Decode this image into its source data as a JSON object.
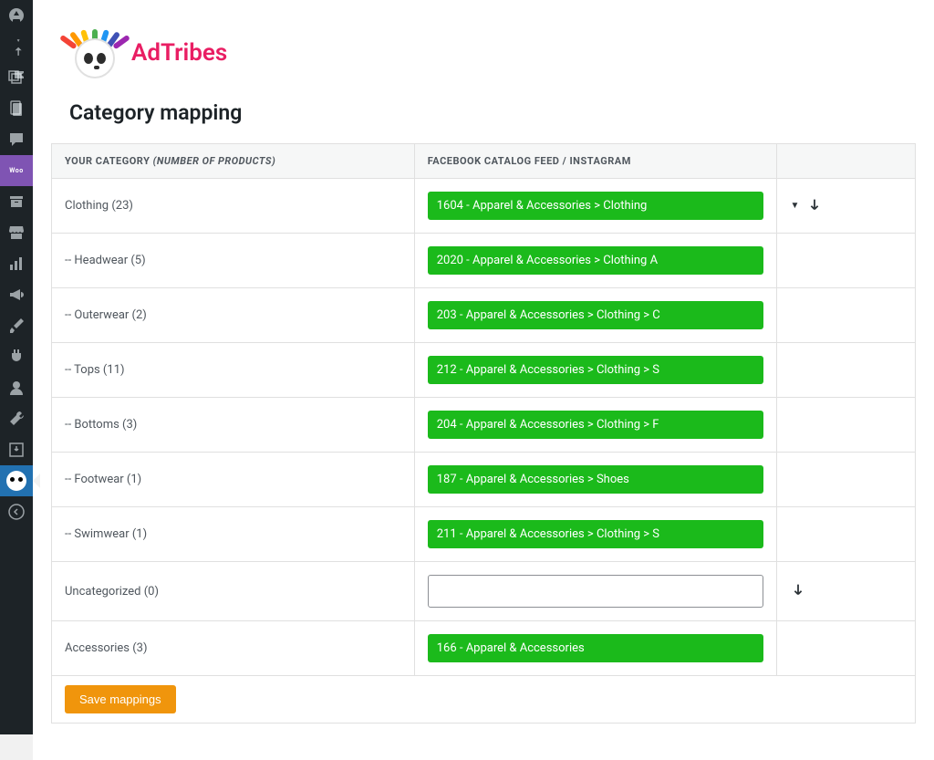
{
  "brand": {
    "name": "AdTribes"
  },
  "page": {
    "title": "Category mapping"
  },
  "table": {
    "col1_label": "YOUR CATEGORY ",
    "col1_suffix": "(NUMBER OF PRODUCTS)",
    "col2_label": "FACEBOOK CATALOG FEED / INSTAGRAM",
    "rows": [
      {
        "label": "Clothing (23)",
        "indent": 0,
        "mapping": "1604 - Apparel & Accessories > Clothing",
        "has_map": true,
        "show_caret": true,
        "show_arrow": true
      },
      {
        "label": "Headwear (5)",
        "indent": 1,
        "mapping": "2020 - Apparel & Accessories > Clothing A",
        "has_map": true,
        "show_caret": false,
        "show_arrow": false
      },
      {
        "label": "Outerwear (2)",
        "indent": 1,
        "mapping": "203 - Apparel & Accessories > Clothing > C",
        "has_map": true,
        "show_caret": false,
        "show_arrow": false
      },
      {
        "label": "Tops (11)",
        "indent": 1,
        "mapping": "212 - Apparel & Accessories > Clothing > S",
        "has_map": true,
        "show_caret": false,
        "show_arrow": false
      },
      {
        "label": "Bottoms (3)",
        "indent": 1,
        "mapping": "204 - Apparel & Accessories > Clothing > F",
        "has_map": true,
        "show_caret": false,
        "show_arrow": false
      },
      {
        "label": "Footwear (1)",
        "indent": 1,
        "mapping": "187 - Apparel & Accessories > Shoes",
        "has_map": true,
        "show_caret": false,
        "show_arrow": false
      },
      {
        "label": "Swimwear (1)",
        "indent": 1,
        "mapping": "211 - Apparel & Accessories > Clothing > S",
        "has_map": true,
        "show_caret": false,
        "show_arrow": false
      },
      {
        "label": "Uncategorized (0)",
        "indent": 0,
        "mapping": "",
        "has_map": false,
        "show_caret": false,
        "show_arrow": true
      },
      {
        "label": "Accessories (3)",
        "indent": 0,
        "mapping": "166 - Apparel & Accessories",
        "has_map": true,
        "show_caret": false,
        "show_arrow": false
      }
    ]
  },
  "buttons": {
    "save": "Save mappings"
  },
  "colors": {
    "sidebar_bg": "#1d2327",
    "active_bg": "#2271b1",
    "brand_pink": "#e91e63",
    "select_green": "#1bba1b",
    "save_orange": "#f0950c",
    "border": "#e0e0e0",
    "text": "#50575e"
  },
  "headdress_colors": [
    "#f44336",
    "#ff9800",
    "#ffc107",
    "#4caf50",
    "#2196f3",
    "#3f51b5",
    "#9c27b0"
  ],
  "sidebar_icons": [
    "dashboard-icon",
    "pin-icon",
    "media-icon",
    "pages-icon",
    "comments-icon",
    "woo-icon",
    "archive-icon",
    "store-icon",
    "analytics-icon",
    "marketing-icon",
    "brush-icon",
    "plugins-icon",
    "users-icon",
    "tools-icon",
    "import-icon",
    "adtribes-icon",
    "collapse-icon"
  ]
}
